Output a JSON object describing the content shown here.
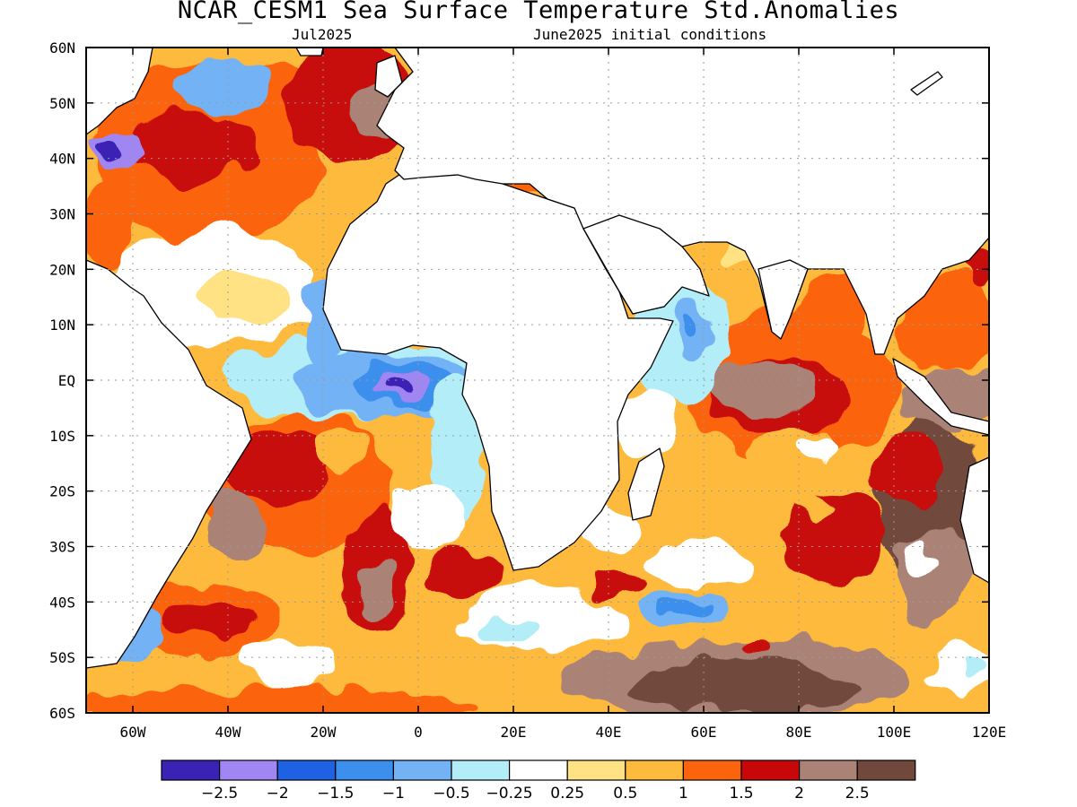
{
  "title": "NCAR_CESM1 Sea Surface Temperature Std.Anomalies",
  "valid_month": "Jul2025",
  "init_label": "June2025 initial conditions",
  "lat_labels": [
    "60N",
    "50N",
    "40N",
    "30N",
    "20N",
    "10N",
    "EQ",
    "10S",
    "20S",
    "30S",
    "40S",
    "50S",
    "60S"
  ],
  "lon_labels": [
    "60W",
    "40W",
    "20W",
    "0",
    "20E",
    "40E",
    "60E",
    "80E",
    "100E",
    "120E"
  ],
  "colorbar": {
    "colors": [
      "#3a22b4",
      "#9f86f2",
      "#1e62e3",
      "#3c8fed",
      "#73b2f5",
      "#b3eef8",
      "#ffffff",
      "#fee283",
      "#fdba3d",
      "#fb640c",
      "#c80808",
      "#aa8276",
      "#71493c"
    ],
    "labels": [
      "−2.5",
      "−2",
      "−1.5",
      "−1",
      "−0.5",
      "−0.25",
      "0.25",
      "0.5",
      "1",
      "1.5",
      "2",
      "2.5"
    ]
  },
  "colors": {
    "land": "#ffffff",
    "grid": "#9a9a9a"
  }
}
